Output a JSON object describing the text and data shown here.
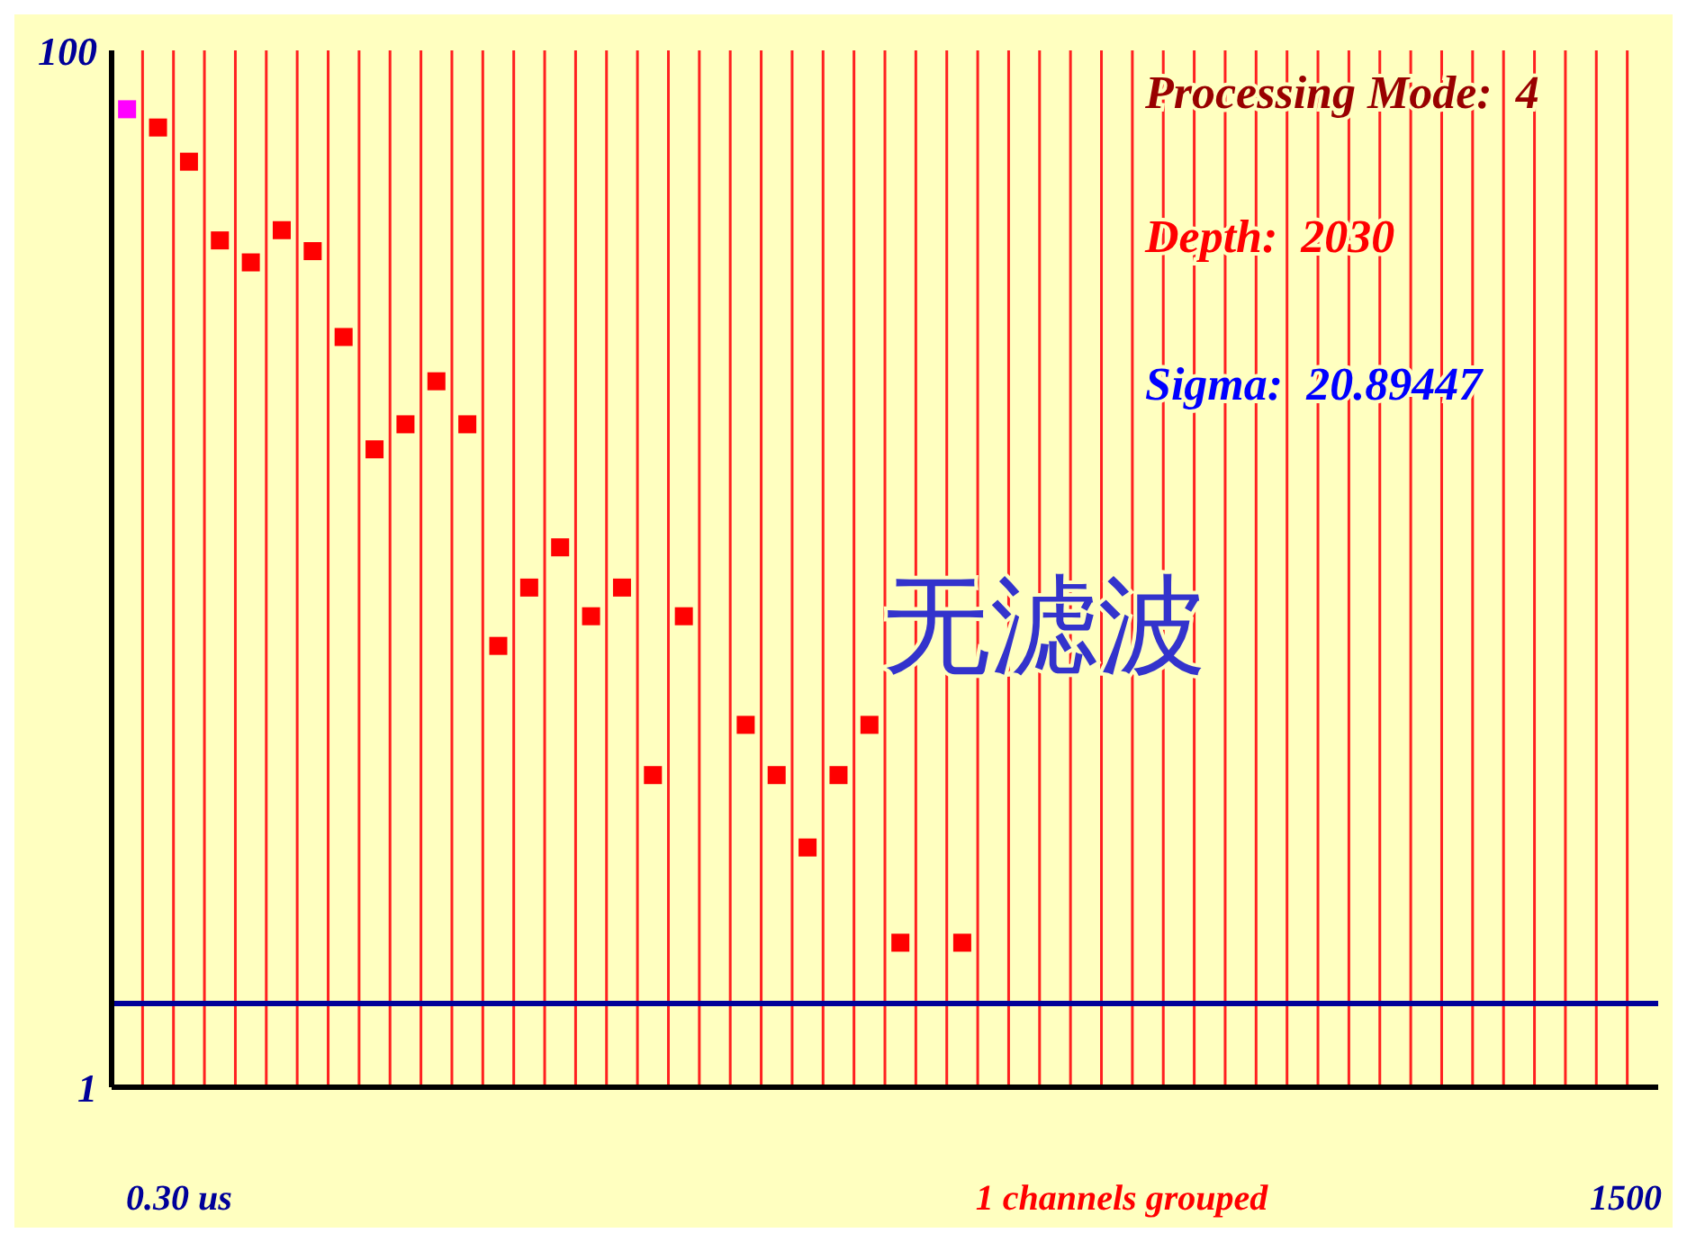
{
  "chart_data": {
    "type": "scatter",
    "categories": [
      null,
      null,
      null,
      null,
      null,
      null,
      null,
      null,
      null,
      null,
      null,
      null,
      null,
      null,
      null,
      null,
      null,
      null,
      null,
      null,
      null,
      null,
      null,
      null,
      null,
      null,
      null,
      null,
      null,
      null,
      null,
      null,
      null,
      null,
      null,
      null,
      null,
      null,
      null,
      null,
      null,
      null,
      null,
      null,
      null,
      null,
      null,
      null,
      null,
      null
    ],
    "series": [
      {
        "color": "#ff00ff",
        "values": [
          77,
          null,
          null,
          null,
          null,
          null,
          null,
          null,
          null,
          null,
          null,
          null,
          null,
          null,
          null,
          null,
          null,
          null,
          null,
          null,
          null,
          null,
          null,
          null,
          null,
          null,
          null,
          null,
          null,
          null,
          null,
          null,
          null,
          null,
          null,
          null,
          null,
          null,
          null,
          null,
          null,
          null,
          null,
          null,
          null,
          null,
          null,
          null,
          null,
          null
        ]
      },
      {
        "color": "#ff0000",
        "values": [
          null,
          71,
          61,
          43,
          39,
          45,
          41,
          28,
          17,
          19,
          23,
          19,
          7.1,
          9.2,
          11,
          8.1,
          9.2,
          4.0,
          8.1,
          null,
          5.0,
          4.0,
          2.9,
          4.0,
          5.0,
          1.9,
          null,
          1.9,
          null,
          null,
          null,
          null,
          null,
          null,
          null,
          null,
          null,
          null,
          null,
          null,
          null,
          null,
          null,
          null,
          null,
          null,
          null,
          null,
          null,
          null
        ]
      }
    ],
    "log": true,
    "ylim": [
      1,
      100
    ],
    "yticks": [
      1,
      100
    ],
    "grid": "x",
    "marker": "square",
    "tick_labels": "y",
    "ref_lines": [
      {
        "axis": "y",
        "value": 1.45,
        "color": "#000099"
      }
    ],
    "annotations": [
      "Processing Mode:  4",
      "Depth:  2030",
      "Sigma:  20.89447",
      "无滤波",
      "0.30 us",
      "1 channels grouped",
      "1500"
    ]
  }
}
